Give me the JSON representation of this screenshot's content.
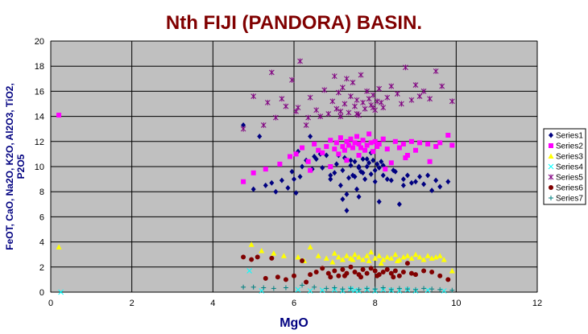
{
  "chart_data": {
    "type": "scatter",
    "title": "Nth FIJI (PANDORA) BASIN.",
    "xlabel": "MgO",
    "ylabel_line1": "FeOT, CaO, Na2O, K2O, Al2O3, TiO2,",
    "ylabel_line2": "P2O5",
    "xlim": [
      0,
      12
    ],
    "ylim": [
      0,
      20
    ],
    "xticks": [
      "0",
      "2",
      "4",
      "6",
      "8",
      "10",
      "12"
    ],
    "yticks": [
      "0",
      "2",
      "4",
      "6",
      "8",
      "10",
      "12",
      "14",
      "16",
      "18",
      "20"
    ],
    "grid": true,
    "legend_position": "right",
    "plot_background": "#c0c0c0",
    "series": [
      {
        "name": "Series1",
        "marker": "diamond",
        "color": "#000080",
        "x": [
          4.75,
          5.0,
          5.15,
          5.3,
          5.45,
          5.55,
          5.7,
          5.85,
          5.95,
          6.0,
          6.05,
          6.1,
          6.15,
          6.2,
          6.3,
          6.4,
          6.45,
          6.5,
          6.55,
          6.65,
          6.7,
          6.8,
          6.9,
          7.0,
          7.05,
          7.1,
          7.15,
          7.2,
          7.25,
          7.3,
          7.35,
          7.4,
          7.45,
          7.5,
          7.55,
          7.6,
          7.65,
          7.7,
          7.75,
          7.8,
          7.85,
          7.9,
          7.95,
          8.0,
          8.05,
          8.1,
          8.15,
          8.2,
          8.3,
          8.4,
          8.5,
          8.6,
          8.7,
          8.8,
          8.9,
          9.0,
          9.1,
          9.2,
          9.3,
          9.4,
          9.5,
          9.6,
          9.8,
          7.3,
          7.6,
          7.9,
          8.0,
          7.7,
          7.4,
          7.2,
          6.9,
          8.2,
          8.45,
          8.7,
          7.5,
          7.8,
          7.6,
          8.1
        ],
        "y": [
          13.3,
          8.2,
          12.4,
          8.5,
          8.7,
          8.0,
          8.9,
          8.3,
          9.6,
          9.0,
          7.9,
          11.2,
          9.2,
          10.0,
          10.5,
          12.4,
          9.8,
          10.8,
          10.6,
          11.0,
          9.9,
          10.9,
          9.0,
          9.5,
          10.2,
          10.9,
          8.5,
          9.7,
          10.7,
          7.8,
          9.1,
          10.1,
          9.3,
          10.4,
          8.2,
          9.9,
          9.6,
          10.6,
          9.0,
          10.0,
          10.3,
          9.4,
          10.5,
          9.7,
          10.2,
          9.9,
          10.4,
          9.3,
          9.0,
          8.9,
          9.6,
          7.0,
          8.5,
          9.3,
          8.7,
          8.8,
          9.2,
          8.6,
          9.3,
          8.1,
          8.9,
          8.4,
          8.8,
          6.5,
          7.6,
          11.1,
          8.8,
          9.5,
          10.5,
          7.4,
          9.3,
          10.1,
          9.7,
          9.0,
          9.2,
          10.6,
          10.0,
          7.2
        ]
      },
      {
        "name": "Series2",
        "marker": "square",
        "color": "#ff00ff",
        "x": [
          0.2,
          4.75,
          5.0,
          5.3,
          5.65,
          5.9,
          6.05,
          6.2,
          6.35,
          6.5,
          6.6,
          6.7,
          6.8,
          6.9,
          7.0,
          7.05,
          7.1,
          7.15,
          7.2,
          7.25,
          7.3,
          7.35,
          7.4,
          7.45,
          7.5,
          7.55,
          7.6,
          7.65,
          7.7,
          7.75,
          7.8,
          7.85,
          7.9,
          7.95,
          8.0,
          8.05,
          8.1,
          8.2,
          8.3,
          8.4,
          8.5,
          8.6,
          8.7,
          8.8,
          8.9,
          9.0,
          9.1,
          9.3,
          9.5,
          9.6,
          9.8,
          9.9,
          6.4,
          6.9,
          7.3,
          7.6,
          8.25,
          8.75,
          9.35
        ],
        "y": [
          14.1,
          8.8,
          9.5,
          9.8,
          10.2,
          10.8,
          11.0,
          11.5,
          10.4,
          11.8,
          11.3,
          11.1,
          11.6,
          12.1,
          11.4,
          11.9,
          11.0,
          12.3,
          11.6,
          11.3,
          12.0,
          11.7,
          12.2,
          11.5,
          11.9,
          12.4,
          11.8,
          11.5,
          12.1,
          11.3,
          11.7,
          12.6,
          11.9,
          11.2,
          12.0,
          11.6,
          11.8,
          12.2,
          11.4,
          10.3,
          12.0,
          11.5,
          11.8,
          10.9,
          12.0,
          11.3,
          11.9,
          11.8,
          11.6,
          11.9,
          12.5,
          11.7,
          9.7,
          10.0,
          10.5,
          10.9,
          9.8,
          10.7,
          10.4
        ]
      },
      {
        "name": "Series3",
        "marker": "triangle",
        "color": "#ffff00",
        "x": [
          0.2,
          4.95,
          5.2,
          5.5,
          5.75,
          6.1,
          6.4,
          6.6,
          6.8,
          7.0,
          7.1,
          7.2,
          7.3,
          7.4,
          7.5,
          7.6,
          7.7,
          7.8,
          7.9,
          8.0,
          8.1,
          8.2,
          8.3,
          8.4,
          8.5,
          8.6,
          8.7,
          8.8,
          8.9,
          9.0,
          9.1,
          9.2,
          9.3,
          9.4,
          9.5,
          9.6,
          9.7,
          9.9,
          6.25,
          6.95,
          7.45,
          7.85,
          8.15,
          8.55
        ],
        "y": [
          3.6,
          3.8,
          3.3,
          3.1,
          2.9,
          2.8,
          3.6,
          2.9,
          2.7,
          3.1,
          2.8,
          2.6,
          2.9,
          2.7,
          3.0,
          2.8,
          2.6,
          2.9,
          3.2,
          2.7,
          2.9,
          2.6,
          2.8,
          2.7,
          3.0,
          2.6,
          2.8,
          2.9,
          2.7,
          3.0,
          2.8,
          2.6,
          2.9,
          2.7,
          2.8,
          2.9,
          2.6,
          1.7,
          2.5,
          2.4,
          2.6,
          2.5,
          2.3,
          2.5
        ]
      },
      {
        "name": "Series4",
        "marker": "x",
        "color": "#00ffff",
        "x": [
          0.25,
          4.9,
          5.2,
          6.1,
          6.4,
          6.7,
          7.0,
          7.2,
          7.4,
          7.5,
          7.6,
          7.8,
          8.0,
          8.2,
          8.4,
          8.6,
          8.8,
          9.0,
          9.3,
          9.7
        ],
        "y": [
          0.0,
          1.7,
          0.1,
          0.2,
          0.1,
          0.15,
          0.2,
          0.1,
          0.25,
          0.15,
          0.1,
          0.2,
          0.1,
          0.2,
          0.15,
          0.1,
          0.2,
          0.1,
          0.15,
          0.1
        ]
      },
      {
        "name": "Series5",
        "marker": "star",
        "color": "#800080",
        "x": [
          4.75,
          5.0,
          5.25,
          5.35,
          5.45,
          5.55,
          5.7,
          5.8,
          5.95,
          6.1,
          6.15,
          6.3,
          6.4,
          6.55,
          6.65,
          6.75,
          6.85,
          6.95,
          7.0,
          7.05,
          7.1,
          7.15,
          7.2,
          7.25,
          7.3,
          7.35,
          7.4,
          7.45,
          7.5,
          7.55,
          7.6,
          7.65,
          7.7,
          7.75,
          7.8,
          7.85,
          7.9,
          7.95,
          8.0,
          8.05,
          8.1,
          8.2,
          8.3,
          8.4,
          8.55,
          8.65,
          8.75,
          8.9,
          9.0,
          9.1,
          9.2,
          9.35,
          9.5,
          9.65,
          9.9,
          6.05,
          6.35,
          7.15,
          7.55,
          7.95,
          8.15
        ],
        "y": [
          13.0,
          15.6,
          13.3,
          15.1,
          17.5,
          13.9,
          15.4,
          14.8,
          16.9,
          14.7,
          18.4,
          13.3,
          15.5,
          14.5,
          14.0,
          16.1,
          14.2,
          15.2,
          17.2,
          14.6,
          15.9,
          14.4,
          16.3,
          15.0,
          17.0,
          14.3,
          15.6,
          16.7,
          14.8,
          15.3,
          14.1,
          17.3,
          15.1,
          14.6,
          16.0,
          15.4,
          14.9,
          15.7,
          14.5,
          15.2,
          16.2,
          14.7,
          15.5,
          16.4,
          15.8,
          15.0,
          17.9,
          15.3,
          16.5,
          15.6,
          16.0,
          15.4,
          17.6,
          16.4,
          15.2,
          14.4,
          13.9,
          14.0,
          14.2,
          14.7,
          15.1
        ]
      },
      {
        "name": "Series6",
        "marker": "circle",
        "color": "#800000",
        "x": [
          4.75,
          4.95,
          5.1,
          5.3,
          5.45,
          5.6,
          5.8,
          6.0,
          6.2,
          6.4,
          6.55,
          6.7,
          6.85,
          7.0,
          7.1,
          7.2,
          7.3,
          7.4,
          7.5,
          7.6,
          7.7,
          7.8,
          7.9,
          8.0,
          8.1,
          8.2,
          8.3,
          8.4,
          8.5,
          8.6,
          8.7,
          8.8,
          8.9,
          9.0,
          9.2,
          9.4,
          9.6,
          9.8,
          6.3,
          6.9,
          7.25,
          7.65,
          8.05,
          8.45
        ],
        "y": [
          2.8,
          2.6,
          2.8,
          1.1,
          2.7,
          1.2,
          1.0,
          1.3,
          2.5,
          1.4,
          1.6,
          1.9,
          1.5,
          1.7,
          1.3,
          1.8,
          1.5,
          2.0,
          1.6,
          1.4,
          1.8,
          1.5,
          1.9,
          1.7,
          1.4,
          1.6,
          1.8,
          1.5,
          1.7,
          1.3,
          1.6,
          2.3,
          1.5,
          1.4,
          1.7,
          1.6,
          1.3,
          1.0,
          0.8,
          1.2,
          1.3,
          1.2,
          1.3,
          1.2
        ]
      },
      {
        "name": "Series7",
        "marker": "plus",
        "color": "#008080",
        "x": [
          4.75,
          5.0,
          5.25,
          5.5,
          5.8,
          6.2,
          6.5,
          6.8,
          7.0,
          7.2,
          7.4,
          7.6,
          7.8,
          8.0,
          8.2,
          8.4,
          8.6,
          8.8,
          9.0,
          9.2,
          9.4,
          9.6,
          9.9
        ],
        "y": [
          0.4,
          0.4,
          0.35,
          0.3,
          0.35,
          0.55,
          0.4,
          0.3,
          0.35,
          0.25,
          0.3,
          0.2,
          0.3,
          0.25,
          0.35,
          0.2,
          0.3,
          0.25,
          0.2,
          0.3,
          0.25,
          0.2,
          0.15
        ]
      }
    ]
  }
}
